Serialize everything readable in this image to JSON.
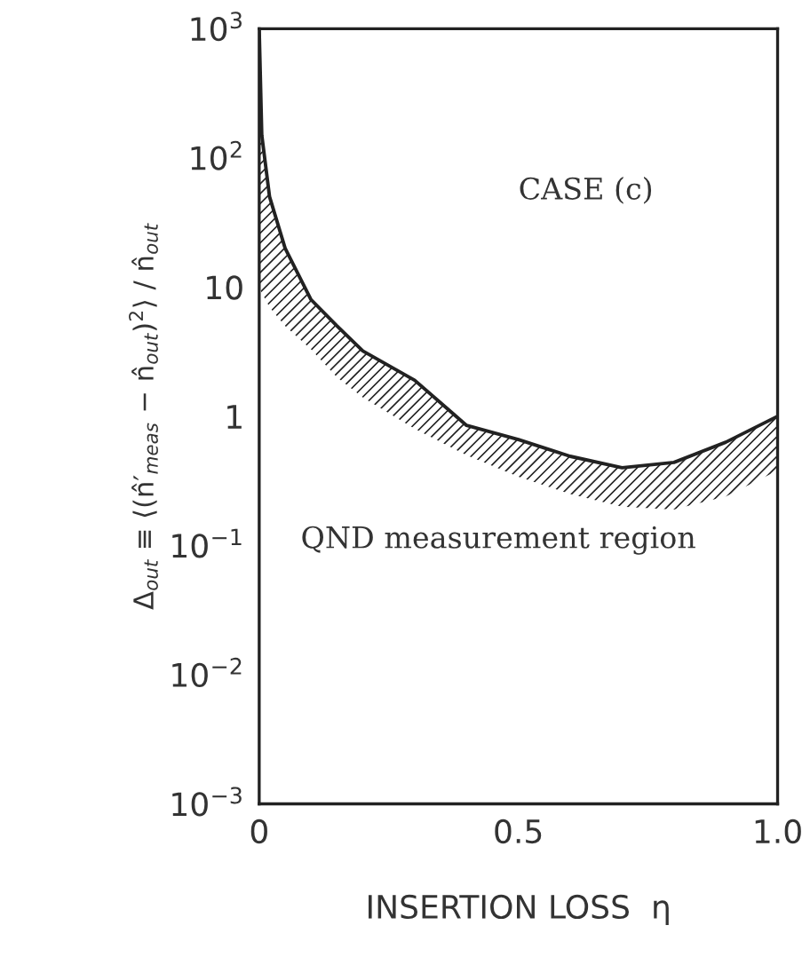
{
  "chart_data": {
    "type": "line",
    "xlabel": "INSERTION LOSS  η",
    "ylabel": "Δ$_{out}$ ≡ ⟨(n̂′$_{meas}$ − n̂$_{out}$)$^{2}$⟩ / n̂$_{out}$",
    "annotations": [
      "CASE (c)",
      "QND measurement region"
    ],
    "x": [
      0,
      0.005,
      0.02,
      0.05,
      0.1,
      0.15,
      0.2,
      0.3,
      0.4,
      0.5,
      0.6,
      0.7,
      0.8,
      0.9,
      1.0
    ],
    "series": [
      {
        "color": "#222222",
        "values": [
          1000,
          150,
          50,
          20,
          8,
          5,
          3.2,
          1.9,
          0.85,
          0.66,
          0.49,
          0.4,
          0.44,
          0.63,
          1.0
        ],
        "lower": [
          10,
          9,
          7,
          5,
          3.3,
          2.0,
          1.4,
          0.8,
          0.5,
          0.34,
          0.25,
          0.2,
          0.19,
          0.24,
          0.38
        ],
        "upper": [
          1000,
          150,
          50,
          20,
          8,
          5,
          3.2,
          1.9,
          0.85,
          0.66,
          0.49,
          0.4,
          0.44,
          0.63,
          1.0
        ]
      }
    ],
    "log": "y",
    "xlim": [
      0,
      1.0
    ],
    "xticks": [
      0,
      0.5,
      {
        "value": 1.0,
        "label": "1.0"
      }
    ],
    "ylim": [
      0.001,
      1000
    ],
    "yticks": [
      {
        "value": 0.001,
        "label": "10$^{−3}$"
      },
      {
        "value": 0.01,
        "label": "10$^{−2}$"
      },
      {
        "value": 0.1,
        "label": "10$^{−1}$"
      },
      {
        "value": 1,
        "label": "1"
      },
      {
        "value": 10,
        "label": "10"
      },
      {
        "value": 100,
        "label": "10$^{2}$"
      },
      {
        "value": 1000,
        "label": "10$^{3}$"
      }
    ],
    "grid": false,
    "marker": "none",
    "line_style": "solid"
  }
}
